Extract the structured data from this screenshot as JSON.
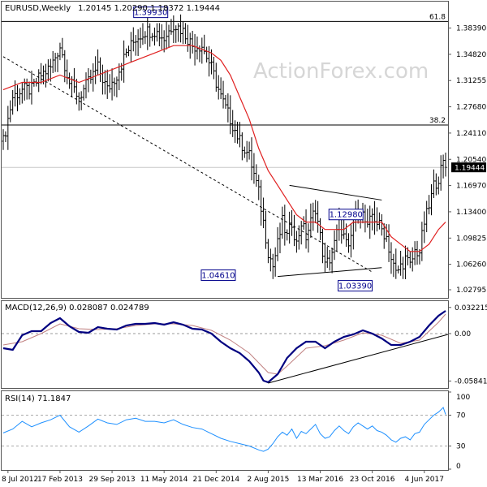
{
  "header": {
    "symbol": "EURUSD,Weekly",
    "ohlc": "1.20145 1.20290 1.18372 1.19444",
    "macd": "MACD(12,26,9) 0.028087 0.024789",
    "rsi": "RSI(14) 71.1847",
    "watermark": "ActionForex.com"
  },
  "colors": {
    "bars": "#000000",
    "ma": "#e02020",
    "macd_line": "#000080",
    "macd_signal": "#c08080",
    "rsi_line": "#1e90ff",
    "price_tag_bg": "#000000"
  },
  "chart_data": [
    {
      "type": "ohlc",
      "title": "EURUSD,Weekly",
      "x_labels": [
        "8 Jul 2012",
        "17 Feb 2013",
        "29 Sep 2013",
        "11 May 2014",
        "21 Dec 2014",
        "2 Aug 2015",
        "13 Mar 2016",
        "23 Oct 2016",
        "4 Jun 2017"
      ],
      "y_ticks": [
        "1.38390",
        "1.34820",
        "1.31255",
        "1.27680",
        "1.24110",
        "1.20540",
        "1.16970",
        "1.13400",
        "1.09825",
        "1.06260",
        "1.02795"
      ],
      "ylim": [
        1.018,
        1.4
      ],
      "current_price": "1.19444",
      "fib_levels": [
        {
          "label": "61.8",
          "value": 1.393
        },
        {
          "label": "38.2",
          "value": 1.252
        }
      ],
      "annotations": [
        {
          "label": "1.39930",
          "value": 1.3993
        },
        {
          "label": "1.04610",
          "value": 1.0461
        },
        {
          "label": "1.12980",
          "value": 1.1298
        },
        {
          "label": "1.03390",
          "value": 1.0339
        }
      ],
      "price_path": [
        [
          0,
          1.23
        ],
        [
          4,
          1.29
        ],
        [
          8,
          1.3
        ],
        [
          12,
          1.3
        ],
        [
          16,
          1.32
        ],
        [
          20,
          1.33
        ],
        [
          24,
          1.36
        ],
        [
          28,
          1.31
        ],
        [
          32,
          1.29
        ],
        [
          36,
          1.31
        ],
        [
          40,
          1.33
        ],
        [
          44,
          1.3
        ],
        [
          48,
          1.32
        ],
        [
          52,
          1.35
        ],
        [
          56,
          1.37
        ],
        [
          60,
          1.38
        ],
        [
          64,
          1.38
        ],
        [
          68,
          1.37
        ],
        [
          72,
          1.39
        ],
        [
          76,
          1.38
        ],
        [
          80,
          1.36
        ],
        [
          84,
          1.36
        ],
        [
          88,
          1.33
        ],
        [
          92,
          1.29
        ],
        [
          96,
          1.26
        ],
        [
          100,
          1.23
        ],
        [
          104,
          1.21
        ],
        [
          108,
          1.16
        ],
        [
          110,
          1.12
        ],
        [
          112,
          1.08
        ],
        [
          114,
          1.06
        ],
        [
          116,
          1.09
        ],
        [
          118,
          1.12
        ],
        [
          120,
          1.1
        ],
        [
          122,
          1.12
        ],
        [
          124,
          1.09
        ],
        [
          126,
          1.12
        ],
        [
          128,
          1.1
        ],
        [
          130,
          1.12
        ],
        [
          132,
          1.14
        ],
        [
          134,
          1.1
        ],
        [
          136,
          1.06
        ],
        [
          138,
          1.07
        ],
        [
          140,
          1.09
        ],
        [
          142,
          1.12
        ],
        [
          144,
          1.1
        ],
        [
          146,
          1.08
        ],
        [
          148,
          1.12
        ],
        [
          150,
          1.14
        ],
        [
          152,
          1.13
        ],
        [
          154,
          1.11
        ],
        [
          156,
          1.13
        ],
        [
          158,
          1.12
        ],
        [
          160,
          1.11
        ],
        [
          162,
          1.1
        ],
        [
          164,
          1.07
        ],
        [
          166,
          1.05
        ],
        [
          168,
          1.06
        ],
        [
          170,
          1.07
        ],
        [
          172,
          1.06
        ],
        [
          174,
          1.08
        ],
        [
          176,
          1.08
        ],
        [
          178,
          1.12
        ],
        [
          180,
          1.14
        ],
        [
          182,
          1.17
        ],
        [
          184,
          1.18
        ],
        [
          186,
          1.2
        ],
        [
          187,
          1.194
        ]
      ],
      "ma_path": [
        [
          0,
          1.3
        ],
        [
          8,
          1.31
        ],
        [
          16,
          1.31
        ],
        [
          24,
          1.32
        ],
        [
          32,
          1.31
        ],
        [
          40,
          1.32
        ],
        [
          48,
          1.33
        ],
        [
          56,
          1.34
        ],
        [
          64,
          1.35
        ],
        [
          72,
          1.36
        ],
        [
          80,
          1.36
        ],
        [
          88,
          1.35
        ],
        [
          92,
          1.34
        ],
        [
          96,
          1.32
        ],
        [
          100,
          1.29
        ],
        [
          104,
          1.26
        ],
        [
          108,
          1.22
        ],
        [
          112,
          1.19
        ],
        [
          116,
          1.17
        ],
        [
          120,
          1.15
        ],
        [
          124,
          1.13
        ],
        [
          128,
          1.12
        ],
        [
          132,
          1.12
        ],
        [
          136,
          1.11
        ],
        [
          140,
          1.11
        ],
        [
          144,
          1.11
        ],
        [
          148,
          1.12
        ],
        [
          152,
          1.12
        ],
        [
          156,
          1.12
        ],
        [
          160,
          1.12
        ],
        [
          164,
          1.1
        ],
        [
          168,
          1.09
        ],
        [
          172,
          1.08
        ],
        [
          176,
          1.08
        ],
        [
          180,
          1.09
        ],
        [
          184,
          1.11
        ],
        [
          187,
          1.12
        ]
      ],
      "trend_lines": [
        {
          "style": "dashed",
          "from": [
            0,
            1.345
          ],
          "to": [
            156,
            1.052
          ]
        },
        {
          "style": "solid",
          "from": [
            121,
            1.17
          ],
          "to": [
            160,
            1.15
          ]
        },
        {
          "style": "solid",
          "from": [
            116,
            1.046
          ],
          "to": [
            160,
            1.058
          ]
        }
      ]
    },
    {
      "type": "line",
      "title": "MACD(12,26,9)",
      "y_ticks": [
        "0.032215",
        "0.00",
        "-0.058413"
      ],
      "ylim": [
        -0.066,
        0.039
      ],
      "series": [
        {
          "values": [
            [
              0,
              -0.018
            ],
            [
              4,
              -0.02
            ],
            [
              8,
              -0.002
            ],
            [
              12,
              0.003
            ],
            [
              16,
              0.003
            ],
            [
              20,
              0.013
            ],
            [
              24,
              0.019
            ],
            [
              28,
              0.009
            ],
            [
              32,
              0.002
            ],
            [
              36,
              0.001
            ],
            [
              40,
              0.008
            ],
            [
              44,
              0.006
            ],
            [
              48,
              0.005
            ],
            [
              52,
              0.01
            ],
            [
              56,
              0.012
            ],
            [
              60,
              0.012
            ],
            [
              64,
              0.013
            ],
            [
              68,
              0.011
            ],
            [
              72,
              0.014
            ],
            [
              76,
              0.011
            ],
            [
              80,
              0.006
            ],
            [
              84,
              0.005
            ],
            [
              88,
              0.0
            ],
            [
              92,
              -0.01
            ],
            [
              96,
              -0.018
            ],
            [
              100,
              -0.024
            ],
            [
              104,
              -0.034
            ],
            [
              108,
              -0.048
            ],
            [
              110,
              -0.058
            ],
            [
              112,
              -0.06
            ],
            [
              116,
              -0.05
            ],
            [
              120,
              -0.03
            ],
            [
              124,
              -0.018
            ],
            [
              128,
              -0.01
            ],
            [
              132,
              -0.01
            ],
            [
              136,
              -0.018
            ],
            [
              140,
              -0.01
            ],
            [
              144,
              -0.004
            ],
            [
              148,
              -0.001
            ],
            [
              152,
              0.004
            ],
            [
              156,
              0.0
            ],
            [
              160,
              -0.006
            ],
            [
              164,
              -0.014
            ],
            [
              168,
              -0.014
            ],
            [
              172,
              -0.01
            ],
            [
              176,
              -0.004
            ],
            [
              180,
              0.01
            ],
            [
              184,
              0.022
            ],
            [
              187,
              0.028
            ]
          ]
        },
        {
          "values": [
            [
              0,
              -0.014
            ],
            [
              8,
              -0.01
            ],
            [
              16,
              0.0
            ],
            [
              24,
              0.012
            ],
            [
              32,
              0.006
            ],
            [
              40,
              0.005
            ],
            [
              48,
              0.006
            ],
            [
              56,
              0.01
            ],
            [
              64,
              0.012
            ],
            [
              72,
              0.012
            ],
            [
              80,
              0.01
            ],
            [
              88,
              0.004
            ],
            [
              96,
              -0.008
            ],
            [
              104,
              -0.024
            ],
            [
              112,
              -0.048
            ],
            [
              116,
              -0.05
            ],
            [
              120,
              -0.04
            ],
            [
              128,
              -0.018
            ],
            [
              136,
              -0.015
            ],
            [
              144,
              -0.008
            ],
            [
              152,
              0.001
            ],
            [
              160,
              -0.002
            ],
            [
              168,
              -0.012
            ],
            [
              176,
              -0.008
            ],
            [
              184,
              0.014
            ],
            [
              187,
              0.024
            ]
          ]
        }
      ],
      "trend_lines": [
        {
          "style": "solid",
          "from": [
            112,
            -0.061
          ],
          "to": [
            190,
            -0.001
          ]
        }
      ]
    },
    {
      "type": "line",
      "title": "RSI(14)",
      "y_ticks": [
        "100",
        "70",
        "30",
        "0"
      ],
      "ylim": [
        0,
        100
      ],
      "series": [
        {
          "values": [
            [
              0,
              47
            ],
            [
              4,
              52
            ],
            [
              8,
              62
            ],
            [
              12,
              55
            ],
            [
              16,
              60
            ],
            [
              20,
              64
            ],
            [
              24,
              70
            ],
            [
              28,
              55
            ],
            [
              32,
              48
            ],
            [
              36,
              56
            ],
            [
              40,
              65
            ],
            [
              44,
              60
            ],
            [
              48,
              58
            ],
            [
              52,
              64
            ],
            [
              56,
              66
            ],
            [
              60,
              62
            ],
            [
              64,
              62
            ],
            [
              68,
              60
            ],
            [
              72,
              64
            ],
            [
              76,
              58
            ],
            [
              80,
              54
            ],
            [
              84,
              52
            ],
            [
              88,
              46
            ],
            [
              92,
              40
            ],
            [
              96,
              36
            ],
            [
              100,
              33
            ],
            [
              104,
              30
            ],
            [
              108,
              25
            ],
            [
              110,
              23
            ],
            [
              112,
              26
            ],
            [
              114,
              33
            ],
            [
              116,
              42
            ],
            [
              118,
              48
            ],
            [
              120,
              44
            ],
            [
              122,
              52
            ],
            [
              124,
              40
            ],
            [
              126,
              49
            ],
            [
              128,
              46
            ],
            [
              130,
              52
            ],
            [
              132,
              58
            ],
            [
              134,
              46
            ],
            [
              136,
              40
            ],
            [
              138,
              42
            ],
            [
              140,
              50
            ],
            [
              142,
              56
            ],
            [
              144,
              50
            ],
            [
              146,
              46
            ],
            [
              148,
              55
            ],
            [
              150,
              60
            ],
            [
              152,
              56
            ],
            [
              154,
              52
            ],
            [
              156,
              56
            ],
            [
              158,
              50
            ],
            [
              160,
              48
            ],
            [
              162,
              44
            ],
            [
              164,
              38
            ],
            [
              166,
              35
            ],
            [
              168,
              40
            ],
            [
              170,
              42
            ],
            [
              172,
              38
            ],
            [
              174,
              46
            ],
            [
              176,
              48
            ],
            [
              178,
              58
            ],
            [
              180,
              64
            ],
            [
              182,
              70
            ],
            [
              184,
              74
            ],
            [
              186,
              80
            ],
            [
              187,
              71
            ]
          ]
        }
      ]
    }
  ]
}
